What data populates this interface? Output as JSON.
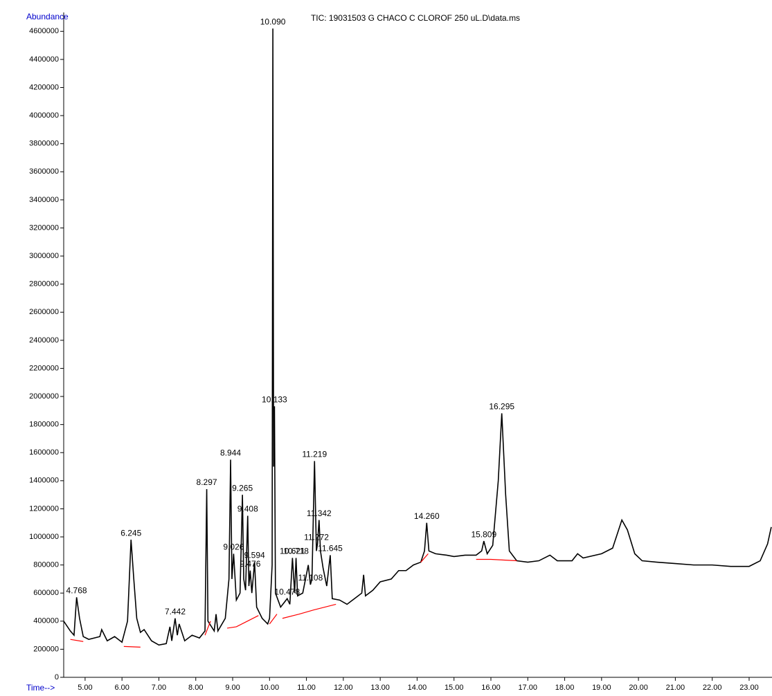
{
  "chart_data": {
    "type": "line",
    "title": "TIC: 19031503 G CHACO C CLOROF 250 uL.D\\data.ms",
    "ylabel": "Abundance",
    "xlabel": "Time-->",
    "xlim": [
      4.42,
      23.62
    ],
    "ylim": [
      0,
      4700000
    ],
    "xticks": [
      {
        "value": 5,
        "label": "5.00"
      },
      {
        "value": 6,
        "label": "6.00"
      },
      {
        "value": 7,
        "label": "7.00"
      },
      {
        "value": 8,
        "label": "8.00"
      },
      {
        "value": 9,
        "label": "9.00"
      },
      {
        "value": 10,
        "label": "10.00"
      },
      {
        "value": 11,
        "label": "11.00"
      },
      {
        "value": 12,
        "label": "12.00"
      },
      {
        "value": 13,
        "label": "13.00"
      },
      {
        "value": 14,
        "label": "14.00"
      },
      {
        "value": 15,
        "label": "15.00"
      },
      {
        "value": 16,
        "label": "16.00"
      },
      {
        "value": 17,
        "label": "17.00"
      },
      {
        "value": 18,
        "label": "18.00"
      },
      {
        "value": 19,
        "label": "19.00"
      },
      {
        "value": 20,
        "label": "20.00"
      },
      {
        "value": 21,
        "label": "21.00"
      },
      {
        "value": 22,
        "label": "22.00"
      },
      {
        "value": 23,
        "label": "23.00"
      }
    ],
    "yticks": [
      0,
      200000,
      400000,
      600000,
      800000,
      1000000,
      1200000,
      1400000,
      1600000,
      1800000,
      2000000,
      2200000,
      2400000,
      2600000,
      2800000,
      3000000,
      3200000,
      3400000,
      3600000,
      3800000,
      4000000,
      4200000,
      4400000,
      4600000
    ],
    "series": [
      {
        "color": "#000000",
        "x": [
          4.42,
          4.6,
          4.7,
          4.77,
          4.85,
          4.95,
          5.1,
          5.4,
          5.45,
          5.6,
          5.8,
          6.0,
          6.15,
          6.245,
          6.32,
          6.4,
          6.5,
          6.6,
          6.8,
          7.0,
          7.2,
          7.3,
          7.35,
          7.44,
          7.5,
          7.55,
          7.7,
          7.9,
          8.1,
          8.25,
          8.297,
          8.33,
          8.5,
          8.55,
          8.6,
          8.8,
          8.9,
          8.944,
          8.98,
          9.026,
          9.1,
          9.2,
          9.265,
          9.3,
          9.35,
          9.408,
          9.44,
          9.476,
          9.52,
          9.594,
          9.65,
          9.8,
          9.95,
          10.0,
          10.07,
          10.09,
          10.11,
          10.133,
          10.16,
          10.3,
          10.478,
          10.55,
          10.621,
          10.68,
          10.718,
          10.76,
          10.9,
          11.05,
          11.108,
          11.15,
          11.219,
          11.27,
          11.3,
          11.342,
          11.38,
          11.45,
          11.55,
          11.645,
          11.7,
          11.9,
          12.1,
          12.3,
          12.5,
          12.55,
          12.6,
          12.8,
          13.0,
          13.3,
          13.5,
          13.7,
          13.9,
          14.1,
          14.2,
          14.26,
          14.32,
          14.5,
          14.8,
          15.0,
          15.3,
          15.6,
          15.75,
          15.809,
          15.9,
          16.05,
          16.2,
          16.295,
          16.4,
          16.5,
          16.7,
          17.0,
          17.3,
          17.6,
          17.8,
          18.2,
          18.35,
          18.5,
          19.0,
          19.3,
          19.55,
          19.7,
          19.9,
          20.1,
          20.5,
          21.0,
          21.5,
          22.0,
          22.5,
          23.0,
          23.3,
          23.5,
          23.6
        ],
        "values": [
          400000,
          330000,
          300000,
          570000,
          420000,
          290000,
          270000,
          290000,
          340000,
          260000,
          290000,
          250000,
          400000,
          980000,
          700000,
          420000,
          320000,
          340000,
          260000,
          230000,
          240000,
          360000,
          260000,
          420000,
          300000,
          380000,
          260000,
          300000,
          280000,
          330000,
          1340000,
          400000,
          330000,
          450000,
          330000,
          420000,
          700000,
          1550000,
          700000,
          880000,
          550000,
          600000,
          1300000,
          700000,
          620000,
          1150000,
          650000,
          760000,
          600000,
          820000,
          500000,
          420000,
          380000,
          420000,
          800000,
          4620000,
          1500000,
          1930000,
          600000,
          500000,
          560000,
          520000,
          850000,
          600000,
          850000,
          580000,
          600000,
          800000,
          660000,
          700000,
          1540000,
          900000,
          950000,
          1120000,
          900000,
          780000,
          650000,
          870000,
          560000,
          550000,
          520000,
          560000,
          600000,
          730000,
          580000,
          620000,
          680000,
          700000,
          760000,
          760000,
          800000,
          820000,
          900000,
          1100000,
          900000,
          880000,
          870000,
          860000,
          870000,
          870000,
          900000,
          970000,
          880000,
          940000,
          1400000,
          1880000,
          1300000,
          900000,
          830000,
          820000,
          830000,
          870000,
          830000,
          830000,
          880000,
          850000,
          880000,
          920000,
          1120000,
          1050000,
          880000,
          830000,
          820000,
          810000,
          800000,
          800000,
          790000,
          790000,
          830000,
          950000,
          1070000
        ]
      },
      {
        "color": "#ff0000",
        "x": [
          4.6,
          4.95,
          null,
          6.05,
          6.5,
          null,
          8.25,
          8.4,
          null,
          8.85,
          9.1,
          9.4,
          9.7,
          null,
          10.0,
          10.2,
          null,
          10.35,
          10.8,
          11.2,
          11.8,
          null,
          14.1,
          14.3,
          null,
          15.6,
          16.0,
          16.7
        ],
        "values": [
          270000,
          255000,
          null,
          220000,
          215000,
          null,
          300000,
          400000,
          null,
          350000,
          360000,
          400000,
          440000,
          null,
          380000,
          450000,
          null,
          420000,
          450000,
          480000,
          520000,
          null,
          820000,
          880000,
          null,
          840000,
          840000,
          830000
        ]
      }
    ],
    "peaks": {
      "x": [
        4.768,
        6.245,
        7.442,
        8.297,
        8.944,
        9.026,
        9.265,
        9.408,
        9.476,
        9.594,
        10.09,
        10.133,
        10.478,
        10.621,
        10.718,
        11.108,
        11.219,
        11.272,
        11.342,
        11.645,
        14.26,
        15.809,
        16.295
      ],
      "y": [
        570000,
        980000,
        420000,
        1340000,
        1550000,
        880000,
        1300000,
        1150000,
        760000,
        820000,
        4620000,
        1930000,
        560000,
        850000,
        850000,
        660000,
        1540000,
        950000,
        1120000,
        870000,
        1100000,
        970000,
        1880000
      ],
      "labels": [
        "4.768",
        "6.245",
        "7.442",
        "8.297",
        "8.944",
        "9.026",
        "9.265",
        "9.408",
        "9.476",
        "9.594",
        "10.090",
        "10.133",
        "10.478",
        "10.621",
        "10.718",
        "11.108",
        "11.219",
        "11.272",
        "11.342",
        "11.645",
        "14.260",
        "15.809",
        "16.295"
      ]
    }
  }
}
